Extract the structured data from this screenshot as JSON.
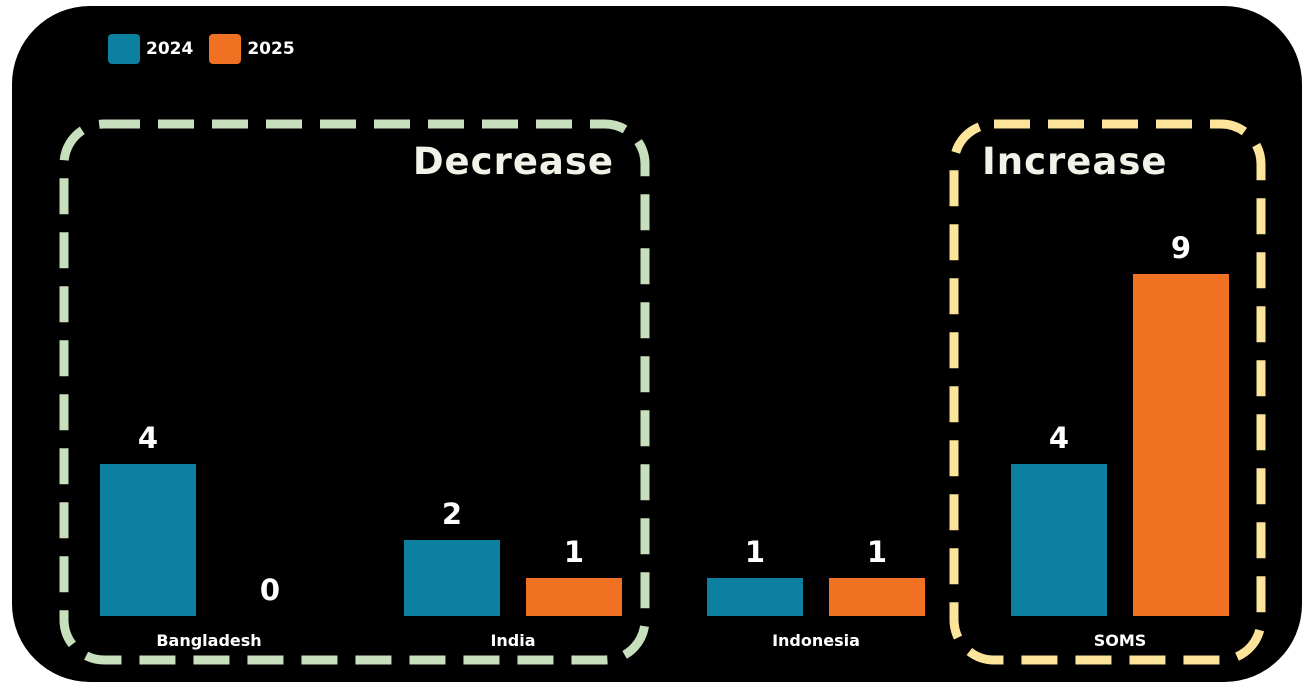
{
  "chart_data": {
    "type": "bar",
    "categories": [
      "Bangladesh",
      "India",
      "Indonesia",
      "SOMS"
    ],
    "series": [
      {
        "name": "2024",
        "values": [
          4,
          2,
          1,
          4
        ],
        "color": "#0d7f9f"
      },
      {
        "name": "2025",
        "values": [
          0,
          1,
          1,
          9
        ],
        "color": "#f07122"
      }
    ],
    "ylim": [
      0,
      10
    ],
    "grid": false,
    "legend": "top-left",
    "annotations": [
      {
        "label": "Decrease",
        "categories": [
          "Bangladesh",
          "India"
        ],
        "color": "#c7dfbc"
      },
      {
        "label": "Increase",
        "categories": [
          "SOMS"
        ],
        "color": "#fde49b"
      }
    ]
  },
  "colors": {
    "background": "#000000",
    "series_2024": "#0d7f9f",
    "series_2025": "#f07122"
  }
}
